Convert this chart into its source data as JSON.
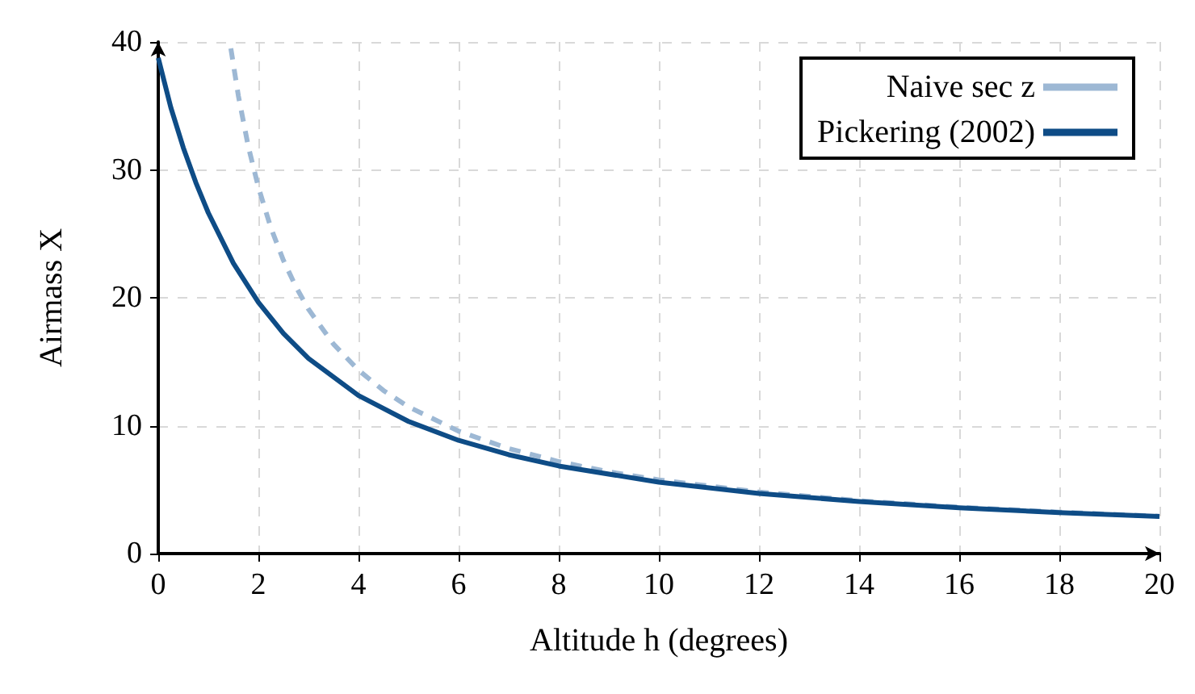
{
  "chart_data": {
    "type": "line",
    "xlabel": "Altitude h (degrees)",
    "ylabel": "Airmass X",
    "xlim": [
      0,
      20
    ],
    "xticks": [
      0,
      2,
      4,
      6,
      8,
      10,
      12,
      14,
      16,
      18,
      20
    ],
    "ylim": [
      0,
      40
    ],
    "yticks": [
      0,
      10,
      20,
      30,
      40
    ],
    "grid": true,
    "legend": "top right",
    "marker": "none",
    "series": [
      {
        "name": "Naive sec z",
        "color": "#9db8d4",
        "line_style": "dashed",
        "x": [
          1.45,
          1.6,
          1.8,
          2,
          2.25,
          2.5,
          2.75,
          3,
          3.5,
          4,
          4.5,
          5,
          6,
          7,
          8,
          9,
          10,
          12,
          14,
          16,
          18,
          20
        ],
        "values": [
          39.5,
          35.8,
          31.8,
          28.65,
          25.47,
          22.93,
          20.86,
          19.11,
          16.38,
          14.34,
          12.75,
          11.47,
          9.57,
          8.21,
          7.19,
          6.39,
          5.76,
          4.81,
          4.13,
          3.63,
          3.24,
          2.92
        ]
      },
      {
        "name": "Pickering (2002)",
        "color": "#0e4c86",
        "line_style": "solid",
        "x": [
          0,
          0.25,
          0.5,
          0.75,
          1,
          1.5,
          2,
          2.5,
          3,
          4,
          5,
          6,
          7,
          8,
          10,
          12,
          14,
          16,
          18,
          20
        ],
        "values": [
          38.75,
          34.89,
          31.74,
          29.02,
          26.64,
          22.71,
          19.64,
          17.21,
          15.26,
          12.36,
          10.33,
          8.85,
          7.73,
          6.85,
          5.58,
          4.7,
          4.07,
          3.58,
          3.2,
          2.9
        ]
      }
    ]
  }
}
